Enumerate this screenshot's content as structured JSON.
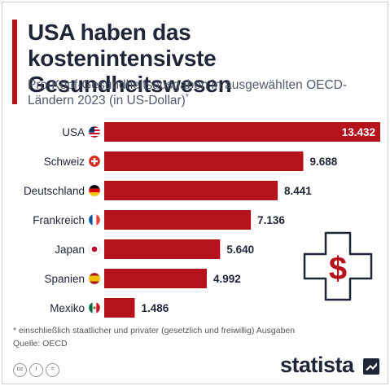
{
  "header": {
    "title": "USA haben das kostenintensivste Gesundheitswesen",
    "subtitle": "Pro-Kopf-Gesundheitsausgaben in ausgewählten OECD-Ländern 2023 (in US-Dollar)",
    "subtitle_mark": "*"
  },
  "chart_data": {
    "type": "bar",
    "orientation": "horizontal",
    "title": "USA haben das kostenintensivste Gesundheitswesen",
    "subtitle": "Pro-Kopf-Gesundheitsausgaben in ausgewählten OECD-Ländern 2023 (in US-Dollar)",
    "categories": [
      "USA",
      "Schweiz",
      "Deutschland",
      "Frankreich",
      "Japan",
      "Spanien",
      "Mexiko"
    ],
    "values": [
      13432,
      9688,
      8441,
      7136,
      5640,
      4992,
      1486
    ],
    "value_labels": [
      "13.432",
      "9.688",
      "8.441",
      "7.136",
      "5.640",
      "4.992",
      "1.486"
    ],
    "flag_icons": [
      "us-flag-icon",
      "switzerland-flag-icon",
      "germany-flag-icon",
      "france-flag-icon",
      "japan-flag-icon",
      "spain-flag-icon",
      "mexico-flag-icon"
    ],
    "xlim": [
      0,
      13432
    ],
    "grid": false,
    "bar_color": "#b5121b",
    "label_inside_color": "#ffffff",
    "label_outside_color": "#1e2537"
  },
  "footer": {
    "footnote": "* einschließlich staatlicher und privater (gesetzlich und freiwillig) Ausgaben",
    "source": "Quelle: OECD",
    "license_icons": [
      "cc",
      "by",
      "nd"
    ],
    "brand": "statista"
  },
  "decoration": {
    "icon": "medical-cross-dollar-icon",
    "symbol": "$",
    "color": "#b5121b"
  },
  "colors": {
    "accent": "#b5121b",
    "text": "#1e2537",
    "muted": "#505a6b"
  }
}
